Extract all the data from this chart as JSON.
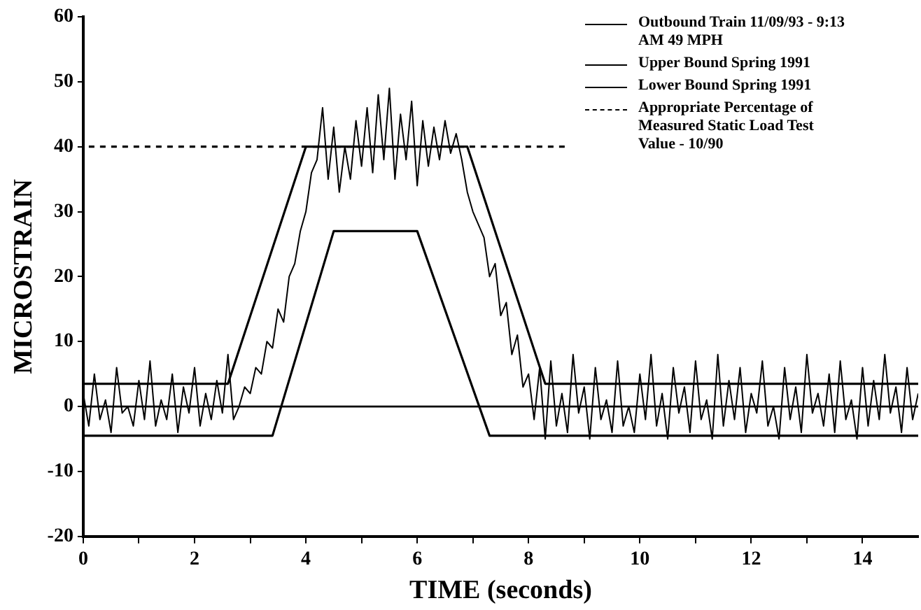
{
  "chart_data": {
    "type": "line",
    "xlabel": "TIME (seconds)",
    "ylabel": "MICROSTRAIN",
    "x": [
      0,
      0.1,
      0.2,
      0.3,
      0.4,
      0.5,
      0.6,
      0.7,
      0.8,
      0.9,
      1,
      1.1,
      1.2,
      1.3,
      1.4,
      1.5,
      1.6,
      1.7,
      1.8,
      1.9,
      2,
      2.1,
      2.2,
      2.3,
      2.4,
      2.5,
      2.6,
      2.7,
      2.8,
      2.9,
      3,
      3.1,
      3.2,
      3.3,
      3.4,
      3.5,
      3.6,
      3.7,
      3.8,
      3.9,
      4,
      4.1,
      4.2,
      4.3,
      4.4,
      4.5,
      4.6,
      4.7,
      4.8,
      4.9,
      5,
      5.1,
      5.2,
      5.3,
      5.4,
      5.5,
      5.6,
      5.7,
      5.8,
      5.9,
      6,
      6.1,
      6.2,
      6.3,
      6.4,
      6.5,
      6.6,
      6.7,
      6.8,
      6.9,
      7,
      7.1,
      7.2,
      7.3,
      7.4,
      7.5,
      7.6,
      7.7,
      7.8,
      7.9,
      8,
      8.1,
      8.2,
      8.3,
      8.4,
      8.5,
      8.6,
      8.7,
      8.8,
      8.9,
      9,
      9.1,
      9.2,
      9.3,
      9.4,
      9.5,
      9.6,
      9.7,
      9.8,
      9.9,
      10,
      10.1,
      10.2,
      10.3,
      10.4,
      10.5,
      10.6,
      10.7,
      10.8,
      10.9,
      11,
      11.1,
      11.2,
      11.3,
      11.4,
      11.5,
      11.6,
      11.7,
      11.8,
      11.9,
      12,
      12.1,
      12.2,
      12.3,
      12.4,
      12.5,
      12.6,
      12.7,
      12.8,
      12.9,
      13,
      13.1,
      13.2,
      13.3,
      13.4,
      13.5,
      13.6,
      13.7,
      13.8,
      13.9,
      14,
      14.1,
      14.2,
      14.3,
      14.4,
      14.5,
      14.6,
      14.7,
      14.8,
      14.9,
      15
    ],
    "series": [
      {
        "name": "Outbound Train 11/09/93 - 9:13 AM 49 MPH",
        "color": "#000000",
        "values": [
          2,
          -3,
          5,
          -2,
          1,
          -4,
          6,
          -1,
          0,
          -3,
          4,
          -2,
          7,
          -3,
          1,
          -2,
          5,
          -4,
          3,
          -1,
          6,
          -3,
          2,
          -2,
          4,
          -1,
          8,
          -2,
          0,
          3,
          2,
          6,
          5,
          10,
          9,
          15,
          13,
          20,
          22,
          27,
          30,
          36,
          38,
          46,
          35,
          43,
          33,
          40,
          35,
          44,
          37,
          46,
          36,
          48,
          38,
          49,
          35,
          45,
          38,
          47,
          34,
          44,
          37,
          43,
          38,
          44,
          39,
          42,
          38,
          33,
          30,
          28,
          26,
          20,
          22,
          14,
          16,
          8,
          11,
          3,
          5,
          -2,
          6,
          -5,
          7,
          -3,
          2,
          -4,
          8,
          -1,
          3,
          -5,
          6,
          -2,
          1,
          -4,
          7,
          -3,
          0,
          -4,
          5,
          -2,
          8,
          -3,
          2,
          -5,
          6,
          -1,
          3,
          -4,
          7,
          -2,
          1,
          -5,
          8,
          -3,
          4,
          -2,
          6,
          -4,
          2,
          -1,
          7,
          -3,
          0,
          -5,
          6,
          -2,
          3,
          -4,
          8,
          -1,
          2,
          -3,
          5,
          -4,
          7,
          -2,
          1,
          -5,
          6,
          -3,
          4,
          -2,
          8,
          -1,
          3,
          -4,
          6,
          -2,
          2
        ]
      },
      {
        "name": "Upper Bound Spring 1991",
        "color": "#000000",
        "x": [
          0,
          2.6,
          4,
          6.9,
          8.3,
          15
        ],
        "values": [
          3.5,
          3.5,
          40,
          40,
          3.5,
          3.5
        ]
      },
      {
        "name": "Lower Bound Spring 1991",
        "color": "#000000",
        "x": [
          0,
          3.4,
          4.5,
          6,
          7.3,
          15
        ],
        "values": [
          -4.5,
          -4.5,
          27,
          27,
          -4.5,
          -4.5
        ]
      },
      {
        "name": "Appropriate Percentage of Measured Static Load Test Value - 10/90",
        "color": "#000000",
        "x": [
          0.1,
          8.7
        ],
        "values": [
          40,
          40
        ],
        "line_style": "dashed"
      }
    ],
    "ref_lines": [
      {
        "axis": "y",
        "value": 0,
        "color": "#000000"
      }
    ],
    "xlim": [
      0,
      15
    ],
    "ylim": [
      -20,
      60
    ],
    "xticks": [
      0,
      {
        "value": 1,
        "label": null
      },
      2,
      {
        "value": 3,
        "label": null
      },
      4,
      {
        "value": 5,
        "label": null
      },
      6,
      {
        "value": 7,
        "label": null
      },
      8,
      {
        "value": 9,
        "label": null
      },
      10,
      {
        "value": 11,
        "label": null
      },
      12,
      {
        "value": 13,
        "label": null
      },
      14
    ],
    "yticks": [
      -20,
      -10,
      0,
      10,
      20,
      30,
      40,
      50,
      60
    ],
    "grid": false,
    "legend": "top right",
    "marker": "none",
    "line_style": "solid"
  }
}
